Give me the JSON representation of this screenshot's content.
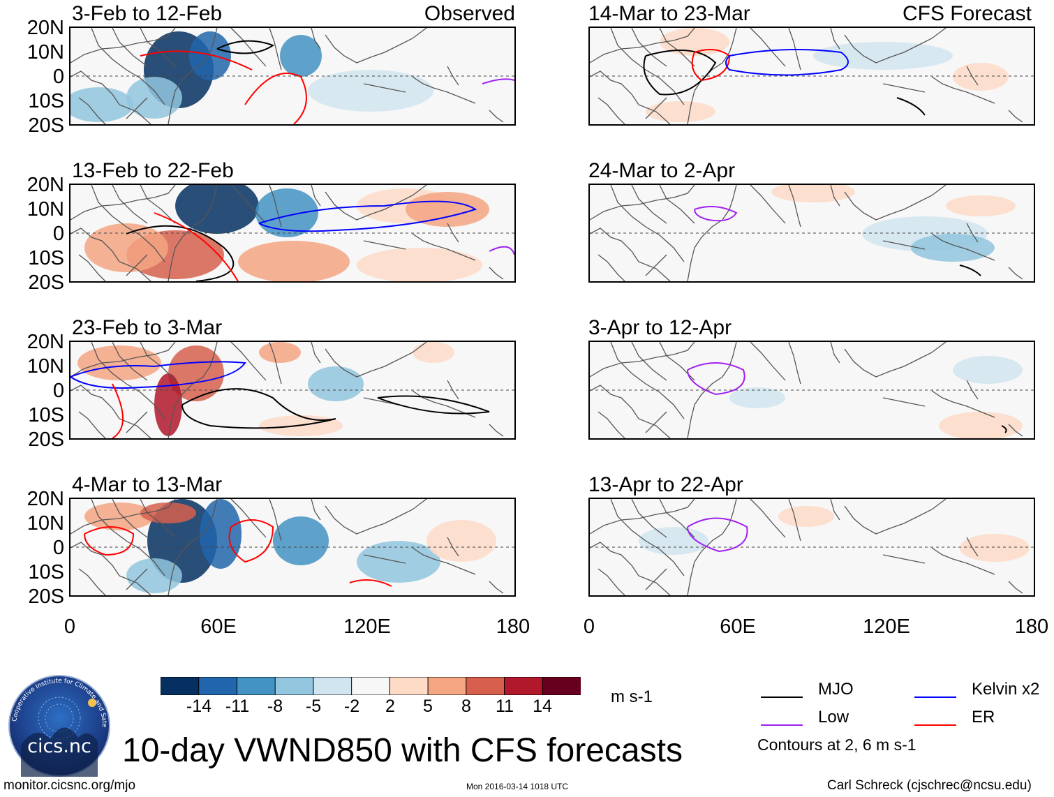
{
  "observed_label": "Observed",
  "forecast_label": "CFS Forecast",
  "lat_labels": [
    "20N",
    "10N",
    "0",
    "10S",
    "20S"
  ],
  "lon_labels": [
    "0",
    "60E",
    "120E",
    "180"
  ],
  "left_panels": [
    {
      "title": "3-Feb to 12-Feb"
    },
    {
      "title": "13-Feb to 22-Feb"
    },
    {
      "title": "23-Feb to 3-Mar"
    },
    {
      "title": "4-Mar to 13-Mar"
    }
  ],
  "right_panels": [
    {
      "title": "14-Mar to 23-Mar"
    },
    {
      "title": "24-Mar to 2-Apr"
    },
    {
      "title": "3-Apr to 12-Apr"
    },
    {
      "title": "13-Apr to 22-Apr"
    }
  ],
  "colorbar": {
    "labels": [
      "-14",
      "-11",
      "-8",
      "-5",
      "-2",
      "2",
      "5",
      "8",
      "11",
      "14"
    ],
    "colors": [
      "#053061",
      "#2166ac",
      "#4393c3",
      "#92c5de",
      "#d1e5f0",
      "#f7f7f7",
      "#fddbc7",
      "#f4a582",
      "#d6604d",
      "#b2182b",
      "#67001f"
    ],
    "units": "m s-1"
  },
  "legend": {
    "mjo": {
      "label": "MJO",
      "color": "#000000"
    },
    "kelvin": {
      "label": "Kelvin x2",
      "color": "#0000ff"
    },
    "low": {
      "label": "Low",
      "color": "#a020f0"
    },
    "er": {
      "label": "ER",
      "color": "#ff0000"
    },
    "contours_note": "Contours at 2, 6 m s-1"
  },
  "logo_text": "cics.nc",
  "logo_ring_text": "Cooperative Institute for Climate and Satellites",
  "main_title": "10-day VWND850 with CFS forecasts",
  "footer": {
    "url": "monitor.cicsnc.org/mjo",
    "timestamp": "Mon 2016-03-14 1018 UTC",
    "author": "Carl Schreck (cjschrec@ncsu.edu)"
  }
}
